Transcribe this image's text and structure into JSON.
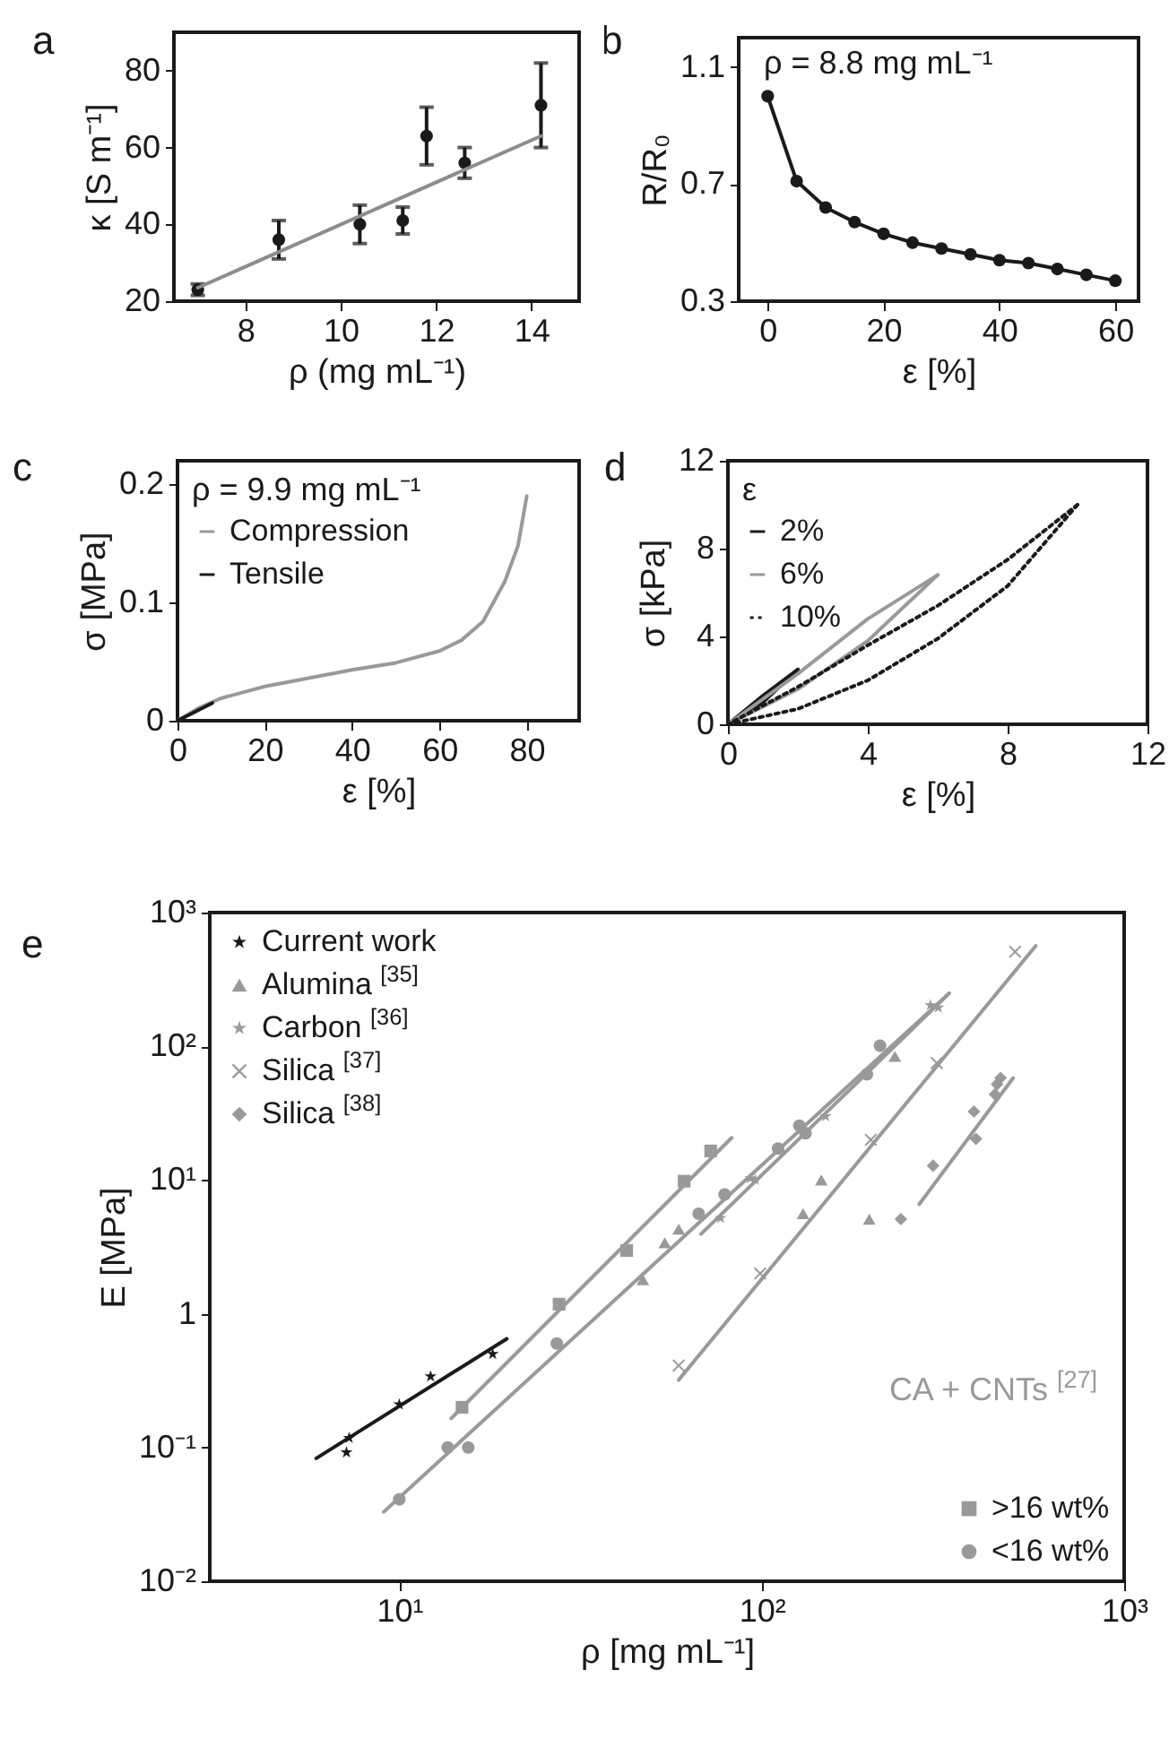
{
  "chart_data": [
    {
      "type": "scatter",
      "title": "a",
      "xlabel": "ρ (mg mL⁻¹)",
      "ylabel": "κ [S m⁻¹]",
      "xlim": [
        6.5,
        15
      ],
      "xticks": [
        8,
        10,
        12,
        14
      ],
      "ylim": [
        20,
        90
      ],
      "yticks": [
        20,
        40,
        60,
        80
      ],
      "grid": false,
      "marker": "circle",
      "series": [
        {
          "color": "#1a1a1a",
          "x": [
            7.0,
            8.7,
            10.4,
            11.3,
            11.8,
            12.6,
            14.2
          ],
          "values": [
            23,
            36,
            40,
            41,
            63,
            56,
            71
          ],
          "errors": [
            1.5,
            5,
            5,
            3.5,
            7.5,
            4,
            11
          ]
        },
        {
          "type": "line",
          "color": "#8c8c8c",
          "marker": "none",
          "line_style": "solid",
          "x": [
            7.0,
            14.2
          ],
          "values": [
            23.5,
            63
          ]
        }
      ]
    },
    {
      "type": "line",
      "title": "b",
      "xlabel": "ε [%]",
      "ylabel": "R/R₀",
      "xlim": [
        -5,
        64
      ],
      "xticks": [
        0,
        20,
        40,
        60
      ],
      "ylim": [
        0.3,
        1.2
      ],
      "yticks": [
        0.3,
        0.7,
        1.1
      ],
      "grid": false,
      "marker": "circle",
      "annotations": [
        "ρ = 8.8 mg mL⁻¹"
      ],
      "series": [
        {
          "color": "#1a1a1a",
          "x": [
            0,
            5,
            10,
            15,
            20,
            25,
            30,
            35,
            40,
            45,
            50,
            55,
            60
          ],
          "values": [
            1.0,
            0.71,
            0.62,
            0.57,
            0.53,
            0.5,
            0.48,
            0.46,
            0.44,
            0.43,
            0.41,
            0.39,
            0.37
          ]
        }
      ]
    },
    {
      "type": "line",
      "title": "c",
      "xlabel": "ε [%]",
      "ylabel": "σ [MPa]",
      "xlim": [
        0,
        92
      ],
      "xticks": [
        0,
        20,
        40,
        60,
        80
      ],
      "ylim": [
        0,
        0.22
      ],
      "yticks": [
        0,
        0.1,
        0.2
      ],
      "grid": false,
      "legend": "top left",
      "legend_title": "ρ = 9.9 mg mL⁻¹",
      "series": [
        {
          "name": "Compression",
          "color": "#999999",
          "line_style": "solid",
          "x": [
            0,
            5,
            10,
            15,
            20,
            30,
            40,
            50,
            60,
            65,
            70,
            75,
            78,
            80
          ],
          "values": [
            0,
            0.011,
            0.019,
            0.024,
            0.029,
            0.036,
            0.043,
            0.049,
            0.059,
            0.068,
            0.084,
            0.118,
            0.148,
            0.19
          ]
        },
        {
          "name": "Tensile",
          "color": "#1a1a1a",
          "line_style": "solid",
          "x": [
            0,
            8
          ],
          "values": [
            0,
            0.015
          ]
        }
      ]
    },
    {
      "type": "line",
      "title": "d",
      "xlabel": "ε [%]",
      "ylabel": "σ [kPa]",
      "xlim": [
        0,
        12
      ],
      "xticks": [
        0,
        4,
        8,
        12
      ],
      "ylim": [
        0,
        12
      ],
      "yticks": [
        0,
        4,
        8,
        12
      ],
      "grid": false,
      "legend": "top left",
      "legend_title": "ε",
      "series": [
        {
          "name": "2%",
          "color": "#1a1a1a",
          "line_style": "solid",
          "x": [
            0,
            1,
            2,
            1,
            0
          ],
          "values": [
            0,
            1.0,
            2.5,
            1.3,
            0
          ]
        },
        {
          "name": "6%",
          "color": "#999999",
          "line_style": "solid",
          "x": [
            0,
            2,
            4,
            6,
            4,
            2,
            0
          ],
          "values": [
            0,
            1.6,
            3.8,
            6.8,
            4.8,
            2.3,
            0
          ]
        },
        {
          "name": "10%",
          "color": "#1a1a1a",
          "line_style": "dotted",
          "x": [
            0,
            2,
            4,
            6,
            8,
            10,
            8,
            6,
            4,
            2,
            0
          ],
          "values": [
            0,
            0.7,
            2.0,
            3.9,
            6.3,
            10,
            7.5,
            5.4,
            3.6,
            1.7,
            0
          ]
        }
      ]
    },
    {
      "type": "scatter",
      "title": "e",
      "xlabel": "ρ [mg mL⁻¹]",
      "ylabel": "E [MPa]",
      "log": "xy",
      "xlim": [
        3,
        1000
      ],
      "xticks": [
        {
          "value": 10,
          "label": "10¹"
        },
        {
          "value": 100,
          "label": "10²"
        },
        {
          "value": 1000,
          "label": "10³"
        }
      ],
      "ylim": [
        0.01,
        1000
      ],
      "yticks": [
        {
          "value": 0.01,
          "label": "10⁻²"
        },
        {
          "value": 0.1,
          "label": "10⁻¹"
        },
        {
          "value": 1,
          "label": "1"
        },
        {
          "value": 10,
          "label": "10¹"
        },
        {
          "value": 100,
          "label": "10²"
        },
        {
          "value": 1000,
          "label": "10³"
        }
      ],
      "grid": false,
      "legend": "top left",
      "annotations": [
        "CA + CNTs $^{[27]}$"
      ],
      "series": [
        {
          "type": "line",
          "color": "#1a1a1a",
          "x": [
            5.9,
            19.8
          ],
          "values": [
            0.083,
            0.65
          ]
        },
        {
          "type": "line",
          "color": "#999999",
          "x": [
            13.9,
            82.6
          ],
          "values": [
            0.165,
            20.7
          ]
        },
        {
          "type": "line",
          "color": "#999999",
          "x": [
            9.06,
            329
          ],
          "values": [
            0.033,
            249
          ]
        },
        {
          "type": "line",
          "color": "#999999",
          "x": [
            68,
            329
          ],
          "values": [
            3.95,
            249
          ]
        },
        {
          "type": "line",
          "color": "#999999",
          "x": [
            59,
            570
          ],
          "values": [
            0.32,
            563
          ]
        },
        {
          "type": "line",
          "color": "#999999",
          "x": [
            272,
            494
          ],
          "values": [
            6.6,
            58
          ]
        },
        {
          "name": "Current work",
          "marker": "star",
          "color": "#1a1a1a",
          "x": [
            7.15,
            7.27,
            10,
            12.2,
            18.1
          ],
          "values": [
            0.092,
            0.118,
            0.21,
            0.34,
            0.5
          ]
        },
        {
          "name": "Alumina $^{[35]}$",
          "marker": "triangle",
          "color": "#999999",
          "x": [
            47,
            54,
            59,
            130,
            146,
            198,
            233
          ],
          "values": [
            1.8,
            3.4,
            4.3,
            5.6,
            10,
            5.1,
            84
          ]
        },
        {
          "name": "Carbon $^{[36]}$",
          "marker": "star",
          "color": "#999999",
          "x": [
            77,
            93,
            96,
            150,
            292,
            307
          ],
          "values": [
            5.2,
            10.3,
            10,
            30,
            203,
            195
          ]
        },
        {
          "name": "Silica $^{[37]}$",
          "marker": "cross",
          "color": "#999999",
          "x": [
            59,
            99,
            200,
            304,
            500
          ],
          "values": [
            0.41,
            2.0,
            20,
            75,
            509
          ]
        },
        {
          "name": "Silica $^{[38]}$",
          "marker": "diamond",
          "color": "#999999",
          "x": [
            242,
            297,
            390,
            385,
            440,
            446,
            456
          ],
          "values": [
            5.1,
            12.8,
            20.3,
            32.5,
            43.7,
            52,
            58
          ]
        },
        {
          "name": ">16 wt%",
          "marker": "square",
          "color": "#999999",
          "x": [
            14.9,
            27.6,
            42.4,
            61.1,
            72.3
          ],
          "values": [
            0.2,
            1.18,
            2.97,
            9.8,
            16.5
          ]
        },
        {
          "name": "<16 wt%",
          "marker": "circle",
          "color": "#999999",
          "x": [
            10,
            13.6,
            15.5,
            27.2,
            67,
            79,
            111,
            127,
            132,
            195,
            212
          ],
          "values": [
            0.041,
            0.1,
            0.1,
            0.6,
            5.6,
            7.8,
            17.2,
            25.5,
            22.4,
            61.7,
            101
          ]
        }
      ]
    }
  ]
}
